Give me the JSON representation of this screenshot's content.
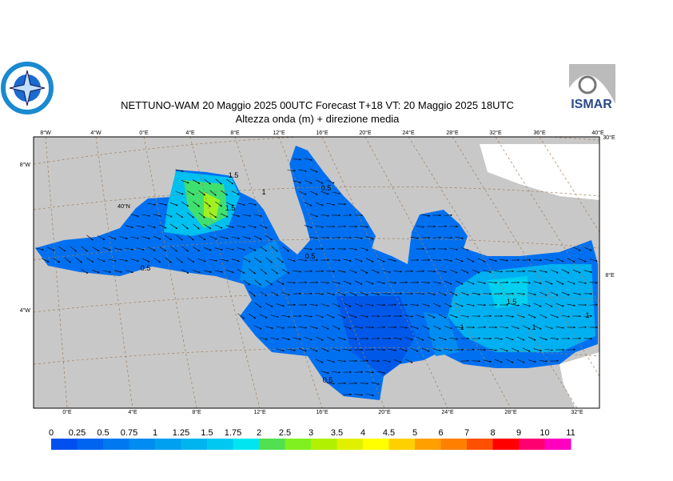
{
  "header": {
    "title": "NETTUNO-WAM 20   Maggio  2025 00UTC Forecast T+18 VT: 20   Maggio  2025 18UTC",
    "subtitle": "Altezza onda (m) + direzione media",
    "logo_right": "ISMAR"
  },
  "graticule": {
    "top": [
      "8°W",
      "4°W",
      "0°E",
      "4°E",
      "8°E",
      "12°E",
      "16°E",
      "20°E",
      "24°E",
      "28°E",
      "32°E",
      "36°E",
      "40°E"
    ],
    "bottom": [
      "0°E",
      "4°E",
      "8°E",
      "12°E",
      "16°E",
      "20°E",
      "24°E",
      "28°E",
      "32°E"
    ],
    "left": [
      "8°W",
      "4°W"
    ],
    "right": [
      "30°E",
      "8°E"
    ],
    "inner": [
      "40°N"
    ]
  },
  "contour_labels": [
    "1.5",
    "0.5",
    "1",
    "1.5",
    "0.5",
    "0.5",
    "1",
    "1.5",
    "1",
    "1",
    "0.5"
  ],
  "legend": {
    "labels": [
      0,
      0.25,
      0.5,
      0.75,
      1,
      1.25,
      1.5,
      1.75,
      2,
      2.5,
      3,
      3.5,
      4,
      4.5,
      5,
      6,
      7,
      8,
      9,
      10,
      11
    ],
    "colors": [
      "#0050f0",
      "#0064f0",
      "#0078f0",
      "#008cf0",
      "#00a0f0",
      "#00b4f0",
      "#00c8f0",
      "#00e6f0",
      "#50e050",
      "#80f020",
      "#b0f000",
      "#e0f000",
      "#ffff00",
      "#ffd000",
      "#ffa000",
      "#ff8000",
      "#ff5000",
      "#ff0000",
      "#ff0070",
      "#ff00c0"
    ]
  }
}
